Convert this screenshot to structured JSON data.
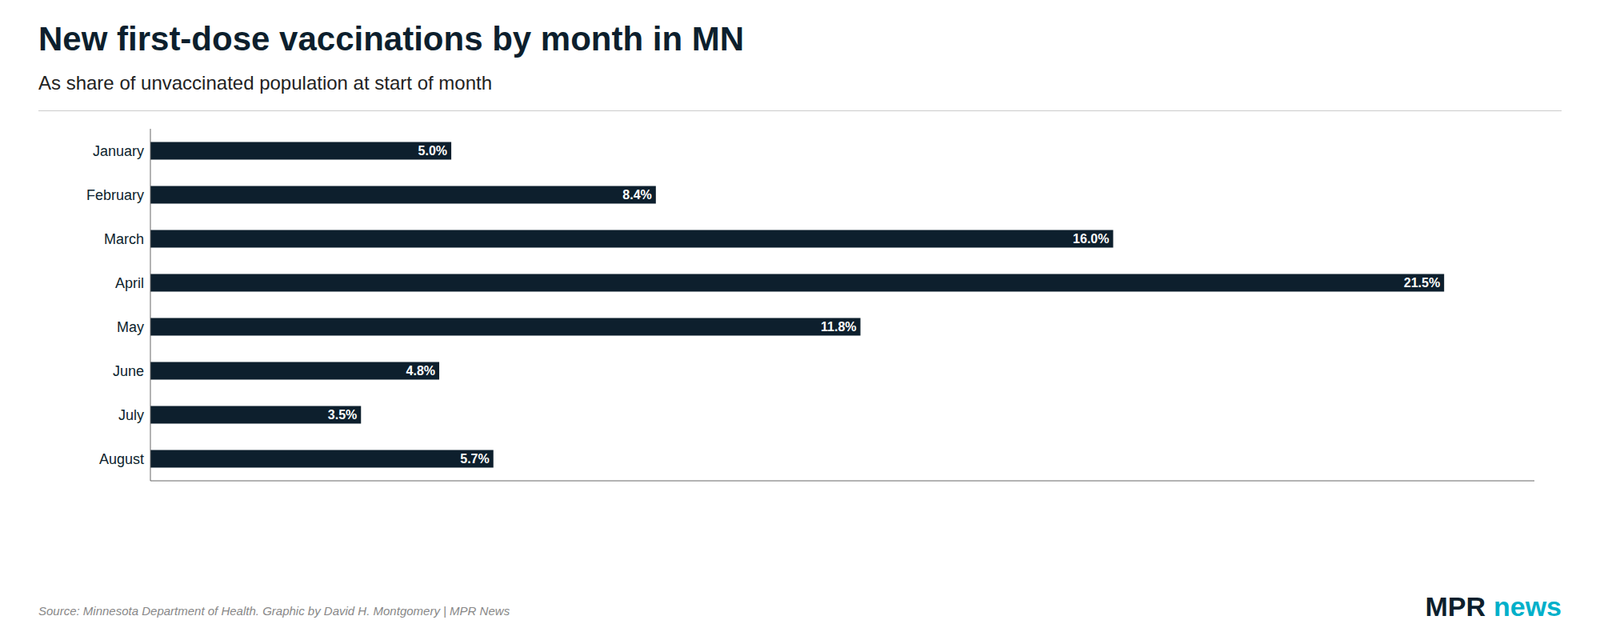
{
  "chart_data": {
    "type": "bar",
    "orientation": "horizontal",
    "title": "New first-dose vaccinations by month in MN",
    "subtitle": "As share of unvaccinated population at start of month",
    "categories": [
      "January",
      "February",
      "March",
      "April",
      "May",
      "June",
      "July",
      "August"
    ],
    "values": [
      5.0,
      8.4,
      16.0,
      21.5,
      11.8,
      4.8,
      3.5,
      5.7
    ],
    "value_labels": [
      "5.0%",
      "8.4%",
      "16.0%",
      "21.5%",
      "11.8%",
      "4.8%",
      "3.5%",
      "5.7%"
    ],
    "color": "#0d1f2d",
    "xlim": [
      0,
      23
    ],
    "data_labels": true,
    "tick_labels": "y",
    "grid": false,
    "annotations": [
      {
        "text": "Source: Minnesota Department of Health. Graphic by David H. Montgomery | MPR News"
      },
      {
        "text": "MPR",
        "color": "#0d1f2d"
      },
      {
        "text": "news",
        "color": "#00b0ca"
      }
    ]
  }
}
